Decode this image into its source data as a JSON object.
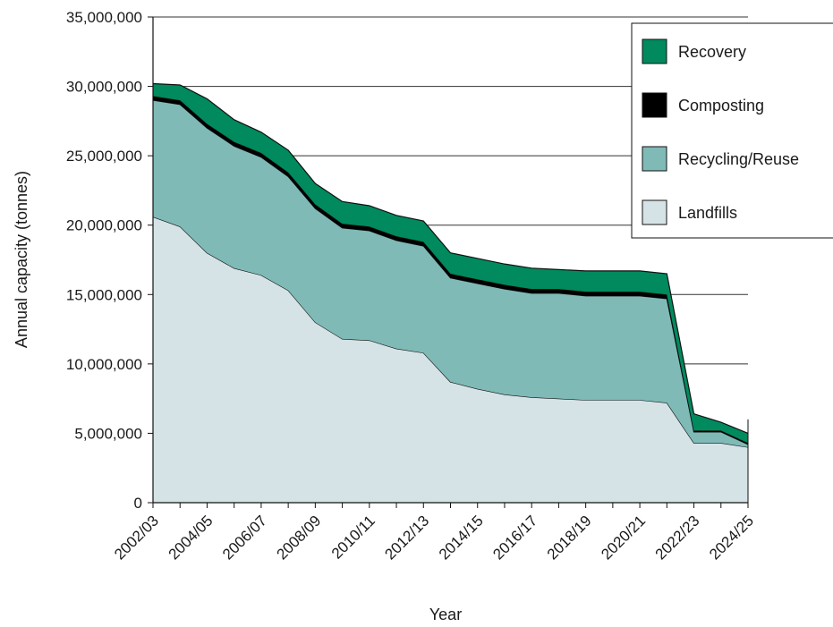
{
  "chart_data": {
    "type": "area",
    "stacked": true,
    "xlabel": "Year",
    "ylabel": "Annual capacity (tonnes)",
    "ylim": [
      0,
      35000000
    ],
    "yticks": [
      "0",
      "5,000,000",
      "10,000,000",
      "15,000,000",
      "20,000,000",
      "25,000,000",
      "30,000,000",
      "35,000,000"
    ],
    "ytick_values": [
      0,
      5000000,
      10000000,
      15000000,
      20000000,
      25000000,
      30000000,
      35000000
    ],
    "categories": [
      "2002/03",
      "2003/04",
      "2004/05",
      "2005/06",
      "2006/07",
      "2007/08",
      "2008/09",
      "2009/10",
      "2010/11",
      "2011/12",
      "2012/13",
      "2013/14",
      "2014/15",
      "2015/16",
      "2016/17",
      "2017/18",
      "2018/19",
      "2019/20",
      "2020/21",
      "2021/22",
      "2022/23",
      "2023/24",
      "2024/25"
    ],
    "xtick_labels": [
      "2002/03",
      "2004/05",
      "2006/07",
      "2008/09",
      "2010/11",
      "2012/13",
      "2014/15",
      "2016/17",
      "2018/19",
      "2020/21",
      "2022/23",
      "2024/25"
    ],
    "grid": "horizontal",
    "legend_position": "top-right",
    "series": [
      {
        "name": "Landfills",
        "color": "#d5e3e6",
        "values": [
          20600000,
          19900000,
          18000000,
          16900000,
          16400000,
          15300000,
          13000000,
          11800000,
          11700000,
          11100000,
          10800000,
          8700000,
          8200000,
          7800000,
          7600000,
          7500000,
          7400000,
          7400000,
          7400000,
          7200000,
          4300000,
          4300000,
          4000000
        ]
      },
      {
        "name": "Recycling/Reuse",
        "color": "#7fbab7",
        "values": [
          8400000,
          8800000,
          9000000,
          8800000,
          8500000,
          8200000,
          8200000,
          8000000,
          7900000,
          7800000,
          7700000,
          7500000,
          7600000,
          7600000,
          7500000,
          7600000,
          7500000,
          7500000,
          7500000,
          7500000,
          800000,
          800000,
          200000
        ]
      },
      {
        "name": "Composting",
        "color": "#000000",
        "values": [
          300000,
          300000,
          300000,
          300000,
          300000,
          300000,
          300000,
          300000,
          300000,
          300000,
          300000,
          300000,
          300000,
          300000,
          300000,
          300000,
          300000,
          300000,
          300000,
          300000,
          100000,
          100000,
          100000
        ]
      },
      {
        "name": "Recovery",
        "color": "#008a5e",
        "values": [
          900000,
          1100000,
          1800000,
          1600000,
          1500000,
          1600000,
          1500000,
          1600000,
          1500000,
          1500000,
          1500000,
          1500000,
          1500000,
          1500000,
          1500000,
          1400000,
          1500000,
          1500000,
          1500000,
          1500000,
          1200000,
          600000,
          700000
        ]
      }
    ],
    "legend_order": [
      "Recovery",
      "Composting",
      "Recycling/Reuse",
      "Landfills"
    ]
  }
}
